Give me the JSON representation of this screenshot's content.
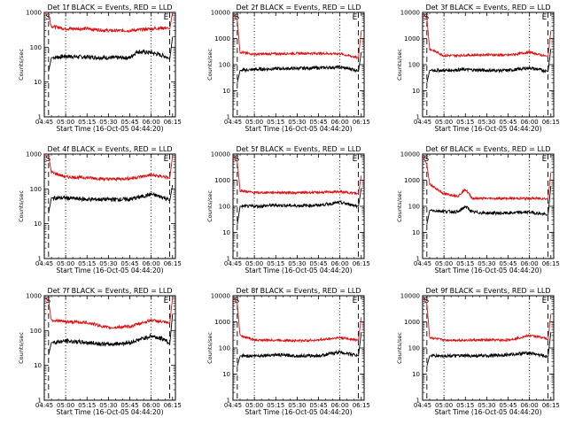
{
  "chart_data": [
    {
      "type": "line",
      "title": "Det 1f BLACK = Events, RED = LLD",
      "ylabel": "Counts/sec",
      "xlabel": "Start Time (16-Oct-05 04:44:20)",
      "markers": [
        "S",
        "E"
      ],
      "yscale": "log",
      "ylim": [
        1,
        1000
      ],
      "yticks": [
        "1",
        "10",
        "100",
        "1000"
      ],
      "xticks": [
        "04:45",
        "05:00",
        "05:15",
        "05:30",
        "05:45",
        "06:00",
        "06:15"
      ],
      "grid": false,
      "series": [
        {
          "name": "LLD",
          "color": "#dd1111",
          "x": [
            "04:45",
            "04:48",
            "04:50",
            "05:00",
            "05:15",
            "05:30",
            "05:45",
            "06:00",
            "06:10",
            "06:13",
            "06:15"
          ],
          "y": [
            900,
            900,
            400,
            340,
            340,
            300,
            300,
            340,
            360,
            330,
            1000
          ]
        },
        {
          "name": "Events",
          "color": "#000000",
          "x": [
            "04:48",
            "04:50",
            "05:00",
            "05:15",
            "05:30",
            "05:45",
            "05:50",
            "06:00",
            "06:10",
            "06:13",
            "06:15"
          ],
          "y": [
            20,
            50,
            55,
            52,
            50,
            50,
            75,
            70,
            55,
            45,
            200
          ]
        }
      ]
    },
    {
      "type": "line",
      "title": "Det 2f BLACK = Events, RED = LLD",
      "ylabel": "Counts/sec",
      "xlabel": "Start Time (16-Oct-05 04:44:20)",
      "markers": [
        "S",
        "E"
      ],
      "yscale": "log",
      "ylim": [
        1,
        10000
      ],
      "yticks": [
        "1",
        "10",
        "100",
        "1000",
        "10000"
      ],
      "xticks": [
        "04:45",
        "05:00",
        "05:15",
        "05:30",
        "05:45",
        "06:00",
        "06:15"
      ],
      "grid": false,
      "series": [
        {
          "name": "LLD",
          "color": "#dd1111",
          "x": [
            "04:45",
            "04:48",
            "04:50",
            "05:00",
            "05:15",
            "05:30",
            "05:45",
            "06:00",
            "06:10",
            "06:13",
            "06:15"
          ],
          "y": [
            9000,
            5000,
            300,
            250,
            260,
            270,
            270,
            260,
            200,
            180,
            2000
          ]
        },
        {
          "name": "Events",
          "color": "#000000",
          "x": [
            "04:48",
            "04:50",
            "05:00",
            "05:15",
            "05:30",
            "05:45",
            "06:00",
            "06:10",
            "06:13",
            "06:15"
          ],
          "y": [
            20,
            60,
            65,
            70,
            72,
            75,
            80,
            65,
            55,
            300
          ]
        }
      ]
    },
    {
      "type": "line",
      "title": "Det 3f BLACK = Events, RED = LLD",
      "ylabel": "Counts/sec",
      "xlabel": "Start Time (16-Oct-05 04:44:20)",
      "markers": [
        "S",
        "E"
      ],
      "yscale": "log",
      "ylim": [
        1,
        10000
      ],
      "yticks": [
        "1",
        "10",
        "100",
        "1000",
        "10000"
      ],
      "xticks": [
        "04:45",
        "05:00",
        "05:15",
        "05:30",
        "05:45",
        "06:00",
        "06:15"
      ],
      "grid": false,
      "series": [
        {
          "name": "LLD",
          "color": "#dd1111",
          "x": [
            "04:45",
            "04:48",
            "04:50",
            "05:00",
            "05:15",
            "05:30",
            "05:45",
            "06:00",
            "06:10",
            "06:13",
            "06:15"
          ],
          "y": [
            9000,
            6000,
            400,
            220,
            230,
            240,
            230,
            300,
            220,
            200,
            2000
          ]
        },
        {
          "name": "Events",
          "color": "#000000",
          "x": [
            "04:48",
            "04:50",
            "05:00",
            "05:15",
            "05:30",
            "05:45",
            "06:00",
            "06:10",
            "06:13",
            "06:15"
          ],
          "y": [
            20,
            60,
            60,
            65,
            60,
            60,
            75,
            60,
            55,
            400
          ]
        }
      ]
    },
    {
      "type": "line",
      "title": "Det 4f BLACK = Events, RED = LLD",
      "ylabel": "Counts/sec",
      "xlabel": "Start Time (16-Oct-05 04:44:20)",
      "markers": [
        "S",
        "E"
      ],
      "yscale": "log",
      "ylim": [
        1,
        1000
      ],
      "yticks": [
        "1",
        "10",
        "100",
        "1000"
      ],
      "xticks": [
        "04:45",
        "05:00",
        "05:15",
        "05:30",
        "05:45",
        "06:00",
        "06:15"
      ],
      "grid": false,
      "series": [
        {
          "name": "LLD",
          "color": "#dd1111",
          "x": [
            "04:45",
            "04:48",
            "04:50",
            "05:00",
            "05:15",
            "05:30",
            "05:45",
            "06:00",
            "06:10",
            "06:13",
            "06:15"
          ],
          "y": [
            900,
            900,
            300,
            220,
            210,
            190,
            200,
            250,
            220,
            200,
            900
          ]
        },
        {
          "name": "Events",
          "color": "#000000",
          "x": [
            "04:48",
            "04:50",
            "05:00",
            "05:15",
            "05:30",
            "05:45",
            "06:00",
            "06:10",
            "06:13",
            "06:15"
          ],
          "y": [
            20,
            55,
            55,
            50,
            50,
            50,
            70,
            55,
            45,
            130
          ]
        }
      ]
    },
    {
      "type": "line",
      "title": "Det 5f BLACK = Events, RED = LLD",
      "ylabel": "Counts/sec",
      "xlabel": "Start Time (16-Oct-05 04:44:20)",
      "markers": [
        "S",
        "E"
      ],
      "yscale": "log",
      "ylim": [
        1,
        10000
      ],
      "yticks": [
        "1",
        "10",
        "100",
        "1000",
        "10000"
      ],
      "xticks": [
        "04:45",
        "05:00",
        "05:15",
        "05:30",
        "05:45",
        "06:00",
        "06:15"
      ],
      "grid": false,
      "series": [
        {
          "name": "LLD",
          "color": "#dd1111",
          "x": [
            "04:45",
            "04:48",
            "04:50",
            "05:00",
            "05:15",
            "05:30",
            "05:45",
            "06:00",
            "06:10",
            "06:13",
            "06:15"
          ],
          "y": [
            9000,
            5000,
            400,
            330,
            340,
            330,
            340,
            360,
            320,
            300,
            1500
          ]
        },
        {
          "name": "Events",
          "color": "#000000",
          "x": [
            "04:48",
            "04:50",
            "05:00",
            "05:15",
            "05:30",
            "05:45",
            "06:00",
            "06:10",
            "06:13",
            "06:15"
          ],
          "y": [
            20,
            100,
            100,
            110,
            105,
            110,
            140,
            110,
            100,
            500
          ]
        }
      ]
    },
    {
      "type": "line",
      "title": "Det 6f BLACK = Events, RED = LLD",
      "ylabel": "Counts/sec",
      "xlabel": "Start Time (16-Oct-05 04:44:20)",
      "markers": [
        "S",
        "E"
      ],
      "yscale": "log",
      "ylim": [
        1,
        10000
      ],
      "yticks": [
        "1",
        "10",
        "100",
        "1000",
        "10000"
      ],
      "xticks": [
        "04:45",
        "05:00",
        "05:15",
        "05:30",
        "05:45",
        "06:00",
        "06:15"
      ],
      "grid": false,
      "series": [
        {
          "name": "LLD",
          "color": "#dd1111",
          "x": [
            "04:45",
            "04:48",
            "04:50",
            "05:00",
            "05:10",
            "05:15",
            "05:20",
            "05:30",
            "05:45",
            "06:00",
            "06:10",
            "06:13",
            "06:15"
          ],
          "y": [
            9000,
            4000,
            700,
            300,
            250,
            450,
            200,
            200,
            200,
            200,
            200,
            190,
            2000
          ]
        },
        {
          "name": "Events",
          "color": "#000000",
          "x": [
            "04:48",
            "04:50",
            "05:00",
            "05:10",
            "05:15",
            "05:20",
            "05:30",
            "05:45",
            "06:00",
            "06:10",
            "06:13",
            "06:15"
          ],
          "y": [
            20,
            70,
            65,
            60,
            100,
            60,
            55,
            55,
            60,
            50,
            45,
            600
          ]
        }
      ]
    },
    {
      "type": "line",
      "title": "Det 7f BLACK = Events, RED = LLD",
      "ylabel": "Counts/sec",
      "xlabel": "Start Time (16-Oct-05 04:44:20)",
      "markers": [
        "S",
        "E"
      ],
      "yscale": "log",
      "ylim": [
        1,
        1000
      ],
      "yticks": [
        "1",
        "10",
        "100",
        "1000"
      ],
      "xticks": [
        "04:45",
        "05:00",
        "05:15",
        "05:30",
        "05:45",
        "06:00",
        "06:15"
      ],
      "grid": false,
      "series": [
        {
          "name": "LLD",
          "color": "#dd1111",
          "x": [
            "04:45",
            "04:48",
            "04:50",
            "05:00",
            "05:15",
            "05:30",
            "05:45",
            "06:00",
            "06:10",
            "06:13",
            "06:15"
          ],
          "y": [
            900,
            700,
            200,
            180,
            170,
            120,
            130,
            200,
            170,
            160,
            900
          ]
        },
        {
          "name": "Events",
          "color": "#000000",
          "x": [
            "04:48",
            "04:50",
            "05:00",
            "05:15",
            "05:30",
            "05:45",
            "06:00",
            "06:10",
            "06:13",
            "06:15"
          ],
          "y": [
            20,
            45,
            50,
            45,
            40,
            45,
            70,
            55,
            40,
            300
          ]
        }
      ]
    },
    {
      "type": "line",
      "title": "Det 8f BLACK = Events, RED = LLD",
      "ylabel": "Counts/sec",
      "xlabel": "Start Time (16-Oct-05 04:44:20)",
      "markers": [
        "S",
        "E"
      ],
      "yscale": "log",
      "ylim": [
        1,
        10000
      ],
      "yticks": [
        "1",
        "10",
        "100",
        "1000",
        "10000"
      ],
      "xticks": [
        "04:45",
        "05:00",
        "05:15",
        "05:30",
        "05:45",
        "06:00",
        "06:15"
      ],
      "grid": false,
      "series": [
        {
          "name": "LLD",
          "color": "#dd1111",
          "x": [
            "04:45",
            "04:48",
            "04:50",
            "05:00",
            "05:15",
            "05:30",
            "05:45",
            "06:00",
            "06:10",
            "06:13",
            "06:15"
          ],
          "y": [
            9000,
            5000,
            300,
            200,
            200,
            190,
            200,
            250,
            210,
            200,
            1500
          ]
        },
        {
          "name": "Events",
          "color": "#000000",
          "x": [
            "04:48",
            "04:50",
            "05:00",
            "05:15",
            "05:30",
            "05:45",
            "06:00",
            "06:10",
            "06:13",
            "06:15"
          ],
          "y": [
            20,
            50,
            50,
            55,
            50,
            50,
            70,
            55,
            50,
            400
          ]
        }
      ]
    },
    {
      "type": "line",
      "title": "Det 9f BLACK = Events, RED = LLD",
      "ylabel": "Counts/sec",
      "xlabel": "Start Time (16-Oct-05 04:44:20)",
      "markers": [
        "S",
        "E"
      ],
      "yscale": "log",
      "ylim": [
        1,
        10000
      ],
      "yticks": [
        "1",
        "10",
        "100",
        "1000",
        "10000"
      ],
      "xticks": [
        "04:45",
        "05:00",
        "05:15",
        "05:30",
        "05:45",
        "06:00",
        "06:15"
      ],
      "grid": false,
      "series": [
        {
          "name": "LLD",
          "color": "#dd1111",
          "x": [
            "04:45",
            "04:48",
            "04:50",
            "05:00",
            "05:15",
            "05:30",
            "05:45",
            "06:00",
            "06:10",
            "06:13",
            "06:15"
          ],
          "y": [
            9000,
            5000,
            250,
            200,
            200,
            200,
            200,
            300,
            250,
            200,
            2000
          ]
        },
        {
          "name": "Events",
          "color": "#000000",
          "x": [
            "04:48",
            "04:50",
            "05:00",
            "05:15",
            "05:30",
            "05:45",
            "06:00",
            "06:10",
            "06:13",
            "06:15"
          ],
          "y": [
            20,
            50,
            50,
            50,
            50,
            55,
            65,
            50,
            45,
            400
          ]
        }
      ]
    }
  ]
}
